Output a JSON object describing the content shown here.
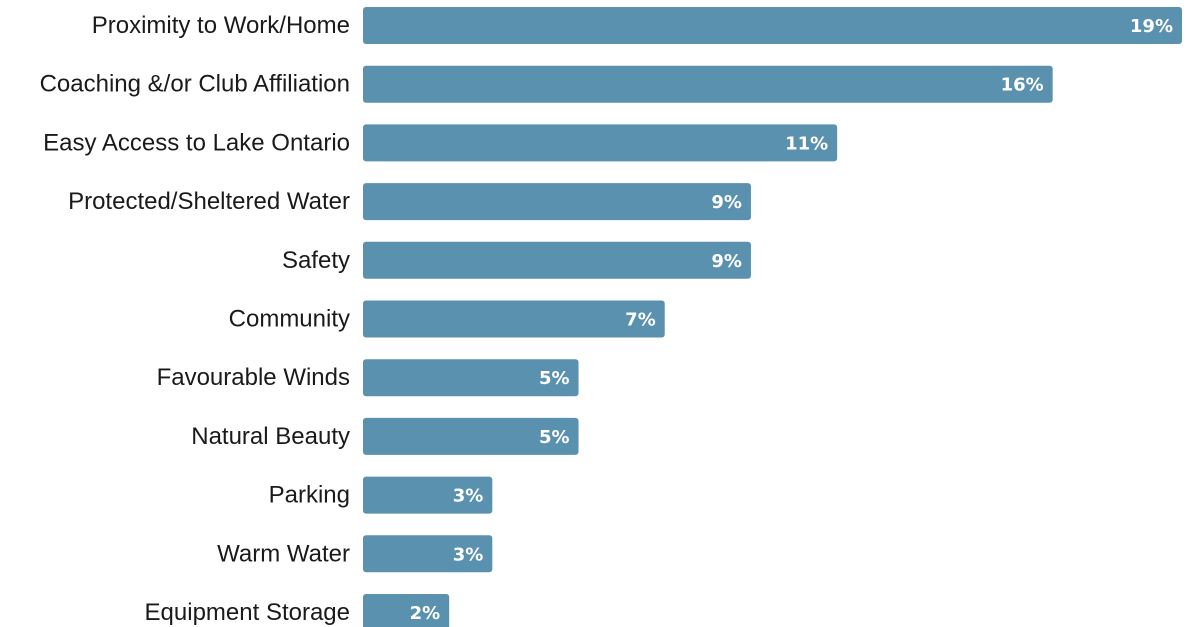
{
  "chart_data": {
    "type": "bar",
    "orientation": "horizontal",
    "categories": [
      "Proximity to Work/Home",
      "Coaching &/or Club Affiliation",
      "Easy Access to Lake Ontario",
      "Protected/Sheltered Water",
      "Safety",
      "Community",
      "Favourable Winds",
      "Natural Beauty",
      "Parking",
      "Warm Water",
      "Equipment Storage"
    ],
    "values": [
      19,
      16,
      11,
      9,
      9,
      7,
      5,
      5,
      3,
      3,
      2
    ],
    "value_labels": [
      "19%",
      "16%",
      "11%",
      "9%",
      "9%",
      "7%",
      "5%",
      "5%",
      "3%",
      "3%",
      "2%"
    ],
    "title": "",
    "xlabel": "",
    "ylabel": "",
    "xlim": [
      0,
      19
    ],
    "grid": false,
    "bar_color": "#5a91af",
    "value_label_color": "#ffffff"
  }
}
